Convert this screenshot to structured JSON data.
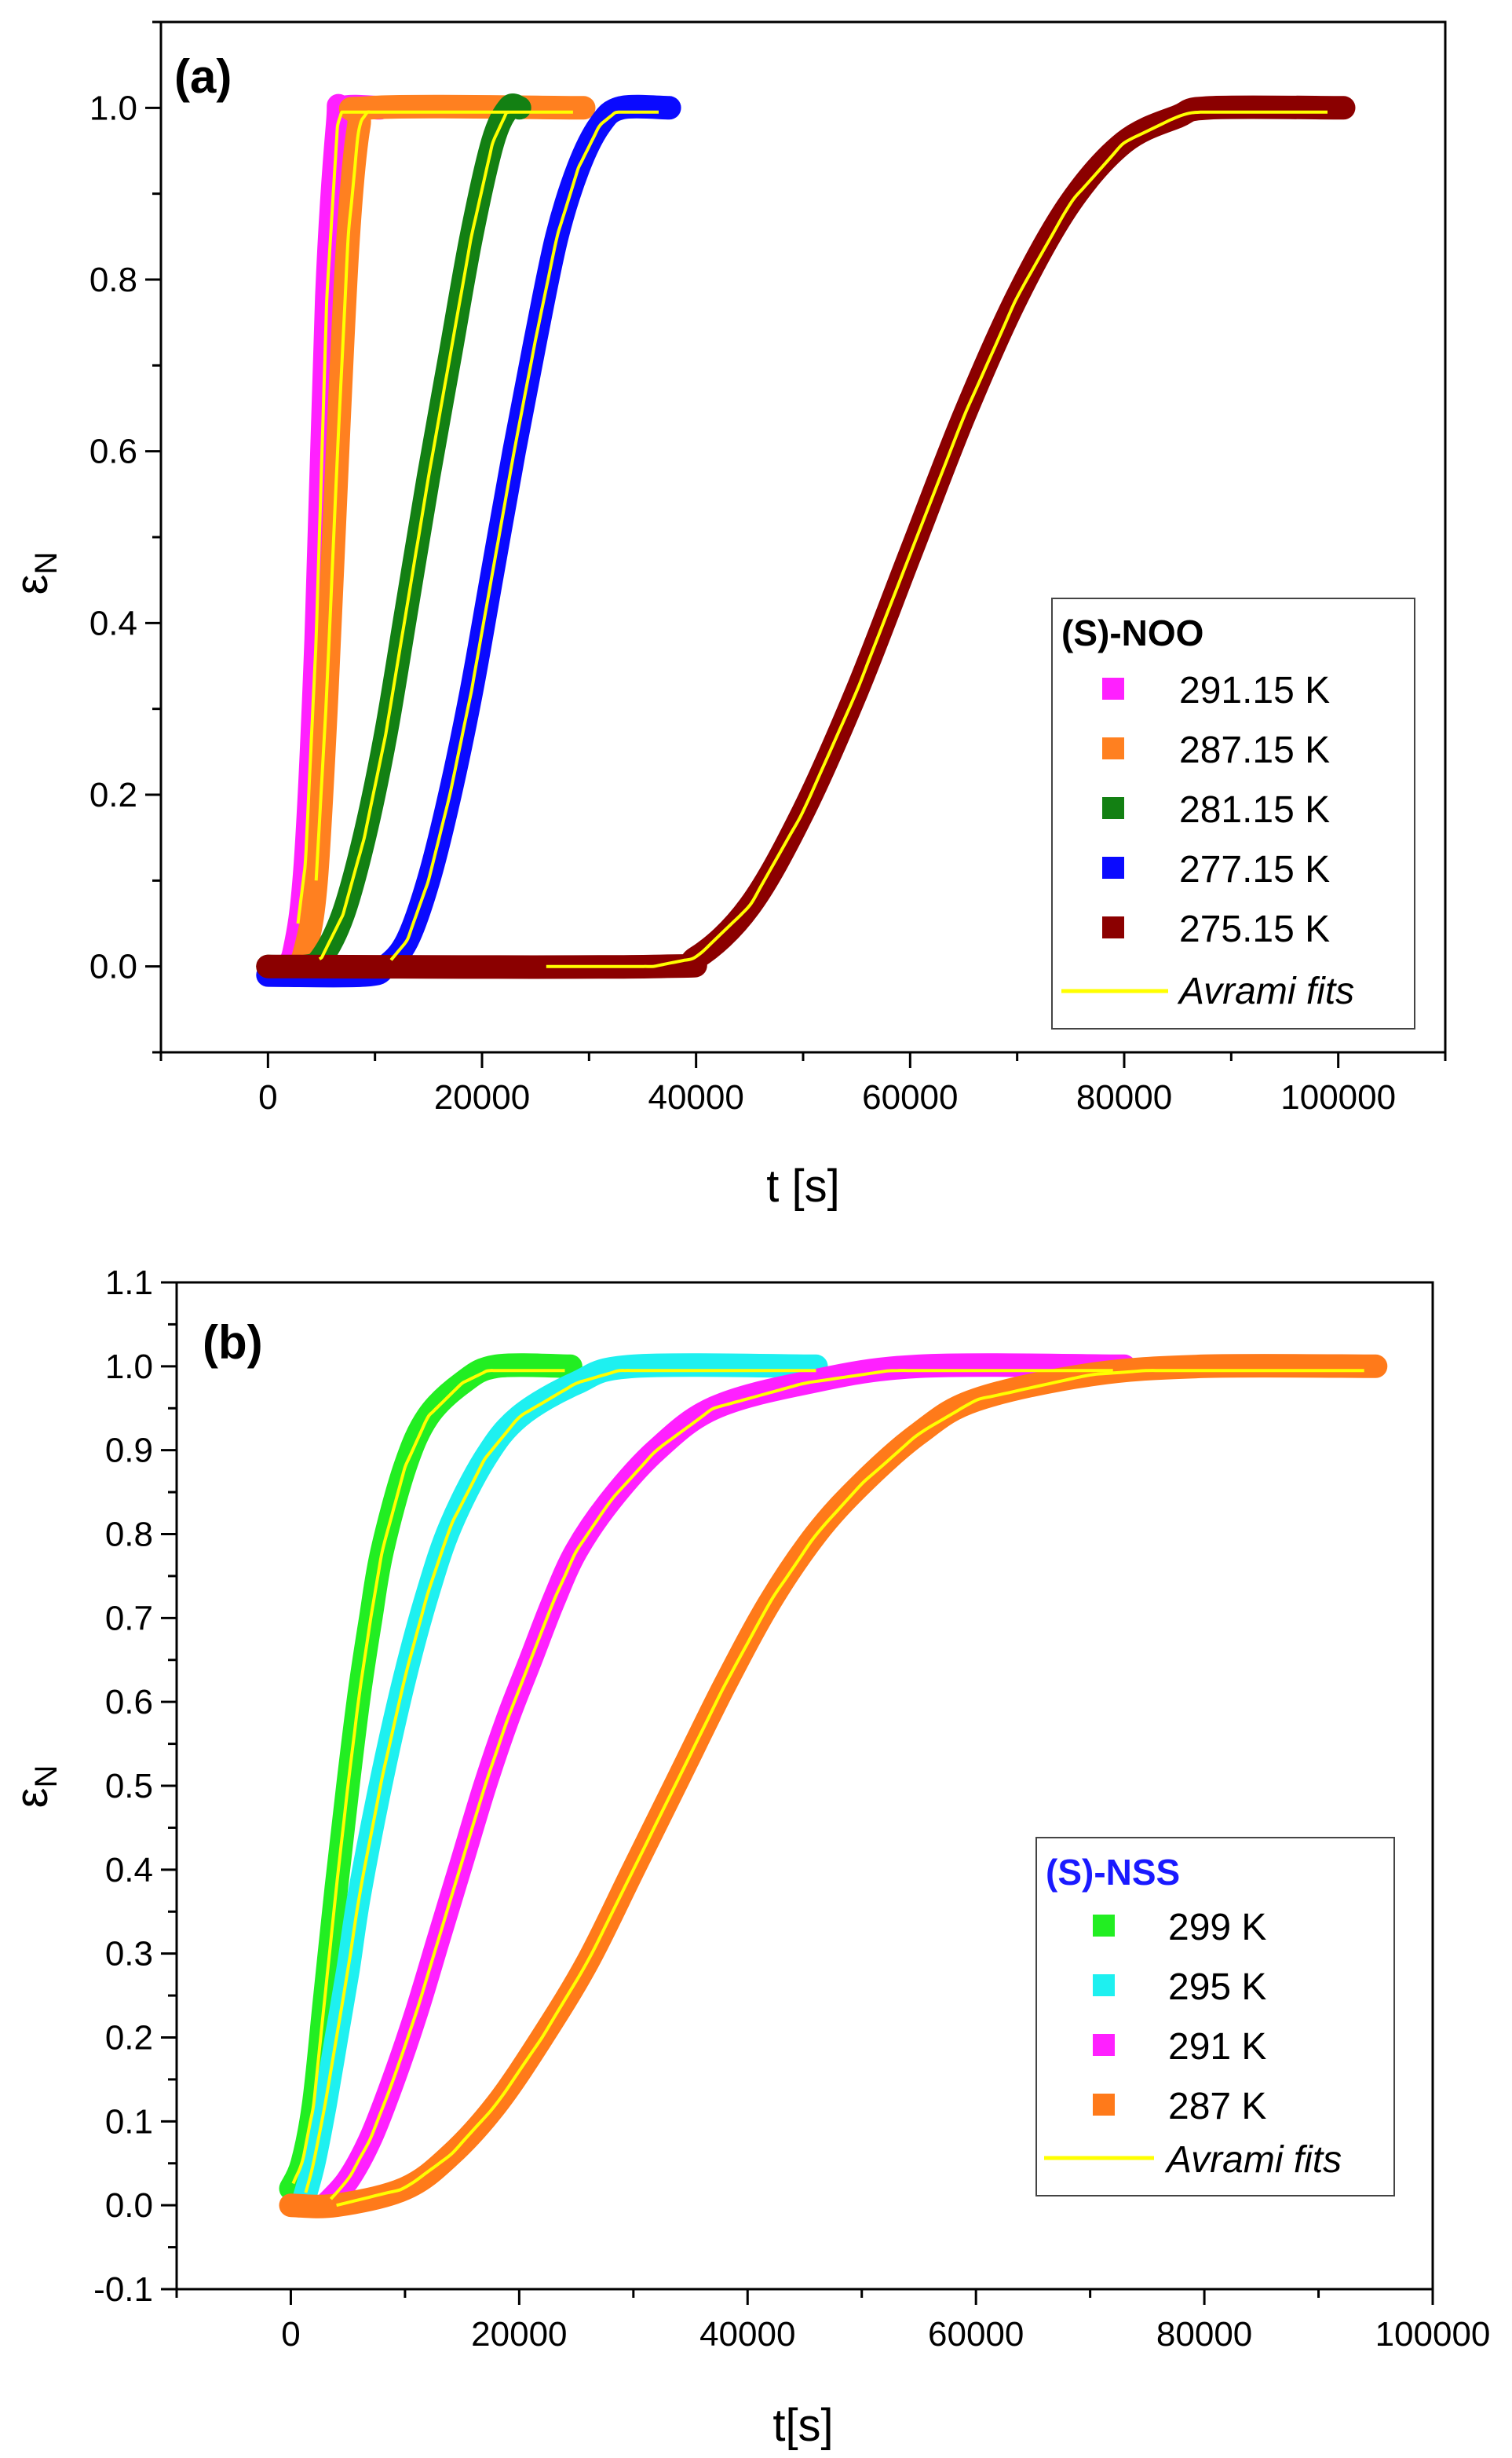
{
  "chart_data": [
    {
      "type": "line",
      "panel_label": "(a)",
      "xlabel": "t [s]",
      "ylabel_main": "ε",
      "ylabel_sub": "N",
      "xlim": [
        -10000,
        110000
      ],
      "ylim": [
        -0.1,
        1.1
      ],
      "xticks": [
        0,
        20000,
        40000,
        60000,
        80000,
        100000
      ],
      "xtick_labels": [
        "0",
        "20000",
        "40000",
        "60000",
        "80000",
        "100000"
      ],
      "yticks": [
        0,
        0.2,
        0.4,
        0.6,
        0.8,
        1.0
      ],
      "ytick_labels": [
        "0.0",
        "0.2",
        "0.4",
        "0.6",
        "0.8",
        "1.0"
      ],
      "legend": {
        "title": "(S)-NOO",
        "title_color": "#000000",
        "position": "lower-right",
        "fit_label": "Avrami fits"
      },
      "fit_color": "#ffff00",
      "series": [
        {
          "name": "291.15 K",
          "color": "#ff20ff",
          "t0": 1500,
          "k": 11.5,
          "tEnd": 10500,
          "fitStart": 2800,
          "fitEnd": 9500,
          "points": [
            [
              0,
              0
            ],
            [
              1500,
              0
            ],
            [
              2500,
              0.02
            ],
            [
              3500,
              0.12
            ],
            [
              4500,
              0.38
            ],
            [
              5500,
              0.78
            ],
            [
              6500,
              0.98
            ],
            [
              7000,
              1
            ],
            [
              10500,
              1
            ]
          ]
        },
        {
          "name": "287.15 K",
          "color": "#ff8020",
          "t0": 2500,
          "k": 7,
          "tEnd": 29500,
          "fitStart": 4500,
          "fitEnd": 28500,
          "points": [
            [
              0,
              0
            ],
            [
              2500,
              0
            ],
            [
              3500,
              0.02
            ],
            [
              4500,
              0.1
            ],
            [
              5500,
              0.32
            ],
            [
              6500,
              0.6
            ],
            [
              7500,
              0.85
            ],
            [
              8500,
              0.98
            ],
            [
              9500,
              1
            ],
            [
              29500,
              1
            ]
          ]
        },
        {
          "name": "281.15 K",
          "color": "#138013",
          "t0": 3500,
          "k": 17000,
          "tEnd": 23500,
          "fitStart": 4800,
          "fitEnd": 22500,
          "points": [
            [
              0,
              0
            ],
            [
              3500,
              0
            ],
            [
              5000,
              0.01
            ],
            [
              7000,
              0.06
            ],
            [
              9000,
              0.15
            ],
            [
              11000,
              0.27
            ],
            [
              13000,
              0.42
            ],
            [
              15000,
              0.57
            ],
            [
              17000,
              0.71
            ],
            [
              19000,
              0.85
            ],
            [
              21000,
              0.96
            ],
            [
              22500,
              1
            ],
            [
              23500,
              1
            ]
          ]
        },
        {
          "name": "277.15 K",
          "color": "#0a0aff",
          "t0": 9000,
          "k": 21000,
          "tEnd": 37500,
          "fitStart": 11500,
          "fitEnd": 36500,
          "points": [
            [
              0,
              -0.01
            ],
            [
              9000,
              -0.01
            ],
            [
              11000,
              0
            ],
            [
              13000,
              0.03
            ],
            [
              15000,
              0.1
            ],
            [
              17000,
              0.2
            ],
            [
              19000,
              0.32
            ],
            [
              21000,
              0.46
            ],
            [
              23000,
              0.6
            ],
            [
              25000,
              0.73
            ],
            [
              27000,
              0.85
            ],
            [
              29000,
              0.93
            ],
            [
              31000,
              0.98
            ],
            [
              33000,
              1
            ],
            [
              37500,
              1
            ]
          ]
        },
        {
          "name": "275.15 K",
          "color": "#8b0000",
          "t0": 36000,
          "k": 32000,
          "tEnd": 100500,
          "fitStart": 26000,
          "fitEnd": 99000,
          "points": [
            [
              0,
              0
            ],
            [
              36000,
              0
            ],
            [
              40000,
              0.01
            ],
            [
              45000,
              0.07
            ],
            [
              50000,
              0.18
            ],
            [
              55000,
              0.32
            ],
            [
              60000,
              0.48
            ],
            [
              65000,
              0.64
            ],
            [
              70000,
              0.78
            ],
            [
              75000,
              0.89
            ],
            [
              80000,
              0.96
            ],
            [
              85000,
              0.99
            ],
            [
              88000,
              1
            ],
            [
              100500,
              1
            ]
          ]
        }
      ]
    },
    {
      "type": "line",
      "panel_label": "(b)",
      "xlabel": "t[s]",
      "ylabel_main": "ε",
      "ylabel_sub": "N",
      "xlim": [
        -10000,
        100000
      ],
      "ylim": [
        -0.1,
        1.1
      ],
      "xticks": [
        0,
        20000,
        40000,
        60000,
        80000,
        100000
      ],
      "xtick_labels": [
        "0",
        "20000",
        "40000",
        "60000",
        "80000",
        "100000"
      ],
      "yticks": [
        -0.1,
        0,
        0.1,
        0.2,
        0.3,
        0.4,
        0.5,
        0.6,
        0.7,
        0.8,
        0.9,
        1.0,
        1.1
      ],
      "ytick_labels": [
        "-0.1",
        "0.0",
        "0.1",
        "0.2",
        "0.3",
        "0.4",
        "0.5",
        "0.6",
        "0.7",
        "0.8",
        "0.9",
        "1.0",
        "1.1"
      ],
      "legend": {
        "title": "(S)-NSS",
        "title_color": "#1a1aff",
        "position": "lower-right",
        "fit_label": "Avrami fits"
      },
      "fit_color": "#ffff00",
      "series": [
        {
          "name": "299 K",
          "color": "#22ee22",
          "t0": 0,
          "k": 8000,
          "tEnd": 24500,
          "fitStart": 200,
          "fitEnd": 24000,
          "points": [
            [
              0,
              0.02
            ],
            [
              1000,
              0.05
            ],
            [
              2000,
              0.12
            ],
            [
              3000,
              0.25
            ],
            [
              4000,
              0.38
            ],
            [
              5000,
              0.5
            ],
            [
              6000,
              0.61
            ],
            [
              7000,
              0.7
            ],
            [
              8000,
              0.78
            ],
            [
              10000,
              0.88
            ],
            [
              12000,
              0.94
            ],
            [
              15000,
              0.98
            ],
            [
              18000,
              1
            ],
            [
              24500,
              1
            ]
          ]
        },
        {
          "name": "295 K",
          "color": "#1ef0f0",
          "t0": 1000,
          "k": 11500,
          "tEnd": 46000,
          "fitStart": 1300,
          "fitEnd": 46000,
          "points": [
            [
              1000,
              0
            ],
            [
              2000,
              0.05
            ],
            [
              3000,
              0.12
            ],
            [
              4000,
              0.2
            ],
            [
              5000,
              0.28
            ],
            [
              6000,
              0.37
            ],
            [
              8000,
              0.51
            ],
            [
              10000,
              0.63
            ],
            [
              12000,
              0.73
            ],
            [
              14000,
              0.81
            ],
            [
              17000,
              0.89
            ],
            [
              20000,
              0.94
            ],
            [
              25000,
              0.98
            ],
            [
              30000,
              1
            ],
            [
              46000,
              1
            ]
          ]
        },
        {
          "name": "291 K",
          "color": "#ff20ff",
          "t0": 3000,
          "k": 19000,
          "tEnd": 73000,
          "fitStart": 3500,
          "fitEnd": 72000,
          "points": [
            [
              3000,
              0
            ],
            [
              5000,
              0.03
            ],
            [
              7000,
              0.08
            ],
            [
              9000,
              0.15
            ],
            [
              11000,
              0.23
            ],
            [
              13000,
              0.32
            ],
            [
              15000,
              0.41
            ],
            [
              17000,
              0.5
            ],
            [
              19000,
              0.58
            ],
            [
              21000,
              0.65
            ],
            [
              23000,
              0.72
            ],
            [
              25000,
              0.78
            ],
            [
              28000,
              0.84
            ],
            [
              32000,
              0.9
            ],
            [
              37000,
              0.95
            ],
            [
              45000,
              0.98
            ],
            [
              55000,
              1
            ],
            [
              73000,
              1
            ]
          ]
        },
        {
          "name": "287 K",
          "color": "#ff7a1a",
          "t0": 4000,
          "k": 31000,
          "tEnd": 95000,
          "fitStart": 4000,
          "fitEnd": 94000,
          "points": [
            [
              0,
              0
            ],
            [
              4000,
              0
            ],
            [
              10000,
              0.02
            ],
            [
              14000,
              0.06
            ],
            [
              18000,
              0.12
            ],
            [
              22000,
              0.2
            ],
            [
              26000,
              0.29
            ],
            [
              30000,
              0.4
            ],
            [
              34000,
              0.51
            ],
            [
              38000,
              0.62
            ],
            [
              42000,
              0.72
            ],
            [
              46000,
              0.8
            ],
            [
              50000,
              0.86
            ],
            [
              55000,
              0.92
            ],
            [
              60000,
              0.96
            ],
            [
              70000,
              0.99
            ],
            [
              80000,
              1
            ],
            [
              95000,
              1
            ]
          ]
        }
      ]
    }
  ]
}
